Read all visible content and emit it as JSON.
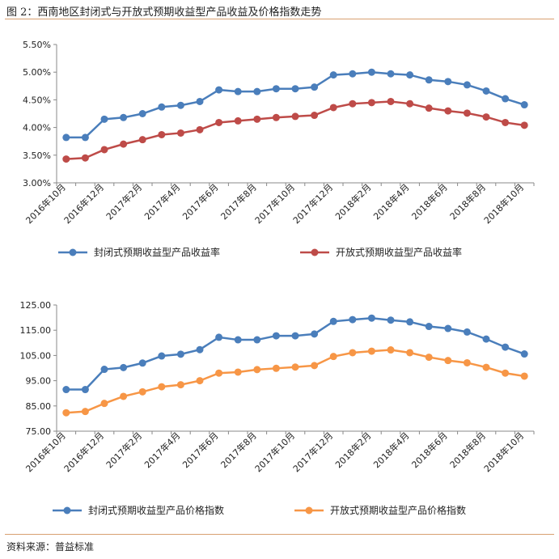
{
  "title": "图 2：西南地区封闭式与开放式预期收益型产品收益及价格指数走势",
  "source": "资料来源：普益标准",
  "colors": {
    "blue": "#4a7ebb",
    "red": "#be4b48",
    "orange": "#f79646"
  },
  "chart_data": [
    {
      "type": "line",
      "x_tick_labels": [
        "2016年10月",
        "2016年12月",
        "2017年2月",
        "2017年4月",
        "2017年6月",
        "2017年8月",
        "2017年10月",
        "2017年12月",
        "2018年2月",
        "2018年4月",
        "2018年6月",
        "2018年8月",
        "2018年10月"
      ],
      "ylim": [
        3.0,
        5.5
      ],
      "y_ticks": [
        "3.00%",
        "3.50%",
        "4.00%",
        "4.50%",
        "5.00%",
        "5.50%"
      ],
      "y_tick_values": [
        3.0,
        3.5,
        4.0,
        4.5,
        5.0,
        5.5
      ],
      "legend": "bottom",
      "series": [
        {
          "name": "封闭式预期收益型产品收益率",
          "color": "#4a7ebb",
          "values": [
            3.82,
            3.82,
            4.15,
            4.18,
            4.25,
            4.37,
            4.4,
            4.47,
            4.68,
            4.65,
            4.65,
            4.7,
            4.7,
            4.73,
            4.95,
            4.97,
            5.0,
            4.97,
            4.95,
            4.86,
            4.83,
            4.77,
            4.66,
            4.52,
            4.41
          ]
        },
        {
          "name": "开放式预期收益型产品收益率",
          "color": "#be4b48",
          "values": [
            3.43,
            3.45,
            3.6,
            3.7,
            3.78,
            3.87,
            3.9,
            3.96,
            4.09,
            4.12,
            4.15,
            4.18,
            4.2,
            4.22,
            4.36,
            4.43,
            4.45,
            4.47,
            4.43,
            4.35,
            4.3,
            4.26,
            4.19,
            4.09,
            4.04
          ]
        }
      ]
    },
    {
      "type": "line",
      "x_tick_labels": [
        "2016年10月",
        "2016年12月",
        "2017年2月",
        "2017年4月",
        "2017年6月",
        "2017年8月",
        "2017年10月",
        "2017年12月",
        "2018年2月",
        "2018年4月",
        "2018年6月",
        "2018年8月",
        "2018年10月"
      ],
      "ylim": [
        75,
        125
      ],
      "y_ticks": [
        "75.00",
        "85.00",
        "95.00",
        "105.00",
        "115.00",
        "125.00"
      ],
      "y_tick_values": [
        75,
        85,
        95,
        105,
        115,
        125
      ],
      "legend": "bottom",
      "series": [
        {
          "name": "封闭式预期收益型产品价格指数",
          "color": "#4a7ebb",
          "values": [
            91.5,
            91.5,
            99.5,
            100.2,
            102.0,
            104.8,
            105.5,
            107.3,
            112.2,
            111.2,
            111.2,
            112.8,
            112.8,
            113.5,
            118.5,
            119.2,
            119.8,
            119.0,
            118.3,
            116.5,
            115.7,
            114.3,
            111.5,
            108.3,
            105.6
          ]
        },
        {
          "name": "开放式预期收益型产品价格指数",
          "color": "#f79646",
          "values": [
            82.3,
            82.8,
            86.0,
            88.8,
            90.6,
            92.6,
            93.4,
            95.0,
            98.0,
            98.4,
            99.4,
            99.9,
            100.4,
            101.0,
            104.6,
            106.1,
            106.7,
            107.2,
            106.1,
            104.3,
            103.0,
            102.1,
            100.3,
            98.0,
            96.8
          ]
        }
      ]
    }
  ]
}
